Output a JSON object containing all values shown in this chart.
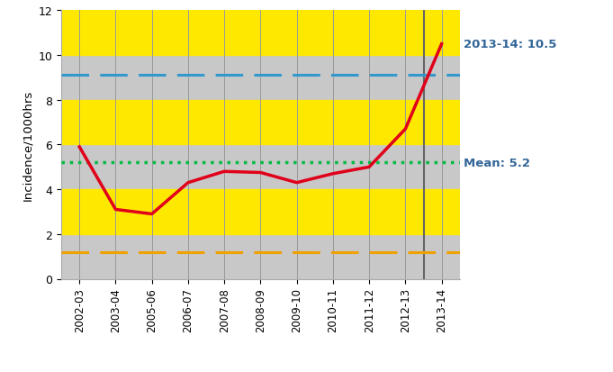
{
  "x_labels": [
    "2002-03",
    "2003-04",
    "2005-06",
    "2006-07",
    "2007-08",
    "2008-09",
    "2009-10",
    "2010-11",
    "2011-12",
    "2012-13",
    "2013-14"
  ],
  "incidence": [
    5.9,
    3.1,
    2.9,
    4.3,
    4.8,
    4.75,
    4.3,
    4.7,
    5.0,
    6.7,
    10.5
  ],
  "mean_val": 5.2,
  "lower_limit": 1.2,
  "upper_limit": 9.1,
  "ylim": [
    0,
    12
  ],
  "ylabel": "Incidence/1000hrs",
  "annotation_text": "2013-14: 10.5",
  "mean_label": "Mean: 5.2",
  "incidence_color": "#e0001a",
  "mean_color": "#00bb44",
  "lower_color": "#f0a000",
  "upper_color": "#3399cc",
  "background_yellow": "#ffe800",
  "background_gray": "#c8c8c8",
  "vline_color": "#666666",
  "annotation_color": "#336699",
  "hband_yellow_ranges": [
    [
      2,
      4
    ],
    [
      6,
      8
    ],
    [
      10,
      12
    ]
  ],
  "hband_gray_ranges": [
    [
      0,
      2
    ],
    [
      4,
      6
    ],
    [
      8,
      10
    ]
  ]
}
